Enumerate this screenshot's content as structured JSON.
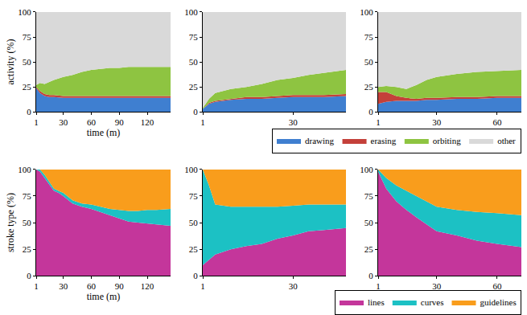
{
  "chart_data": [
    {
      "type": "area",
      "stacked": true,
      "ylabel": "activity (%)",
      "xlabel": "time (m)",
      "x": [
        1,
        5,
        10,
        15,
        20,
        30,
        40,
        50,
        60,
        70,
        80,
        90,
        100,
        110,
        120,
        130,
        145
      ],
      "xlim": [
        1,
        145
      ],
      "xticks": [
        1,
        30,
        60,
        90,
        120
      ],
      "ylim": [
        0,
        100
      ],
      "yticks": [
        0,
        25,
        50,
        75,
        100
      ],
      "series": [
        {
          "name": "drawing",
          "color": "#3f7fd0",
          "values": [
            24,
            19,
            16,
            15,
            15,
            14,
            14,
            14,
            14,
            14,
            14,
            14,
            14,
            14,
            14,
            14,
            14
          ]
        },
        {
          "name": "erasing",
          "color": "#c4403a",
          "values": [
            1,
            2,
            2,
            2,
            2,
            2,
            2,
            2,
            2,
            2,
            2,
            2,
            2,
            2,
            2,
            2,
            2
          ]
        },
        {
          "name": "orbiting",
          "color": "#8ec441",
          "values": [
            2,
            8,
            10,
            13,
            15,
            19,
            21,
            24,
            26,
            27,
            28,
            28,
            29,
            29,
            29,
            29,
            29
          ]
        },
        {
          "name": "other",
          "color": "#d9d9d9",
          "values": [
            73,
            71,
            72,
            70,
            68,
            65,
            63,
            60,
            58,
            57,
            56,
            56,
            55,
            55,
            55,
            55,
            55
          ]
        }
      ]
    },
    {
      "type": "area",
      "stacked": true,
      "x": [
        1,
        3,
        5,
        10,
        15,
        20,
        25,
        30,
        35,
        40,
        47
      ],
      "xlim": [
        1,
        47
      ],
      "xticks": [
        1,
        30
      ],
      "ylim": [
        0,
        100
      ],
      "yticks": [
        0,
        25,
        50,
        75,
        100
      ],
      "series": [
        {
          "name": "drawing",
          "color": "#3f7fd0",
          "values": [
            3,
            8,
            10,
            12,
            13,
            13,
            14,
            15,
            15,
            15,
            16
          ]
        },
        {
          "name": "erasing",
          "color": "#c4403a",
          "values": [
            0,
            1,
            1,
            1,
            2,
            2,
            2,
            2,
            2,
            2,
            2
          ]
        },
        {
          "name": "orbiting",
          "color": "#8ec441",
          "values": [
            1,
            4,
            8,
            10,
            10,
            13,
            16,
            17,
            20,
            22,
            24
          ]
        },
        {
          "name": "other",
          "color": "#d9d9d9",
          "values": [
            96,
            87,
            81,
            77,
            75,
            72,
            68,
            66,
            63,
            61,
            58
          ]
        }
      ]
    },
    {
      "type": "area",
      "stacked": true,
      "legend": "bottom right",
      "x": [
        1,
        5,
        10,
        15,
        20,
        25,
        30,
        40,
        50,
        60,
        72
      ],
      "xlim": [
        1,
        72
      ],
      "xticks": [
        1,
        30,
        60
      ],
      "ylim": [
        0,
        100
      ],
      "yticks": [
        0,
        25,
        50,
        75,
        100
      ],
      "series": [
        {
          "name": "drawing",
          "color": "#3f7fd0",
          "values": [
            8,
            10,
            11,
            11,
            11,
            12,
            12,
            13,
            13,
            14,
            14
          ]
        },
        {
          "name": "erasing",
          "color": "#c4403a",
          "values": [
            12,
            10,
            5,
            3,
            2,
            2,
            2,
            2,
            2,
            2,
            2
          ]
        },
        {
          "name": "orbiting",
          "color": "#8ec441",
          "values": [
            5,
            6,
            9,
            9,
            14,
            18,
            21,
            23,
            25,
            25,
            26
          ]
        },
        {
          "name": "other",
          "color": "#d9d9d9",
          "values": [
            75,
            74,
            75,
            77,
            73,
            68,
            65,
            62,
            60,
            59,
            58
          ]
        }
      ]
    },
    {
      "type": "area",
      "stacked": true,
      "ylabel": "stroke type (%)",
      "xlabel": "time (m)",
      "x": [
        1,
        5,
        10,
        15,
        20,
        25,
        30,
        40,
        50,
        60,
        70,
        80,
        90,
        100,
        110,
        120,
        130,
        145
      ],
      "xlim": [
        1,
        145
      ],
      "xticks": [
        1,
        30,
        60,
        90,
        120
      ],
      "ylim": [
        0,
        100
      ],
      "yticks": [
        0,
        25,
        50,
        75,
        100
      ],
      "series": [
        {
          "name": "lines",
          "color": "#c4369b",
          "values": [
            100,
            98,
            92,
            86,
            80,
            78,
            75,
            68,
            65,
            63,
            60,
            57,
            54,
            51,
            50,
            49,
            48,
            47
          ]
        },
        {
          "name": "curves",
          "color": "#1cc1c4",
          "values": [
            0,
            2,
            3,
            2,
            2,
            2,
            3,
            3,
            3,
            4,
            5,
            6,
            8,
            10,
            11,
            13,
            14,
            16
          ]
        },
        {
          "name": "guidelines",
          "color": "#f99d1c",
          "values": [
            0,
            0,
            5,
            12,
            18,
            20,
            22,
            29,
            32,
            33,
            35,
            37,
            38,
            39,
            39,
            38,
            38,
            37
          ]
        }
      ]
    },
    {
      "type": "area",
      "stacked": true,
      "x": [
        1,
        3,
        5,
        10,
        15,
        20,
        25,
        30,
        35,
        40,
        47
      ],
      "xlim": [
        1,
        47
      ],
      "xticks": [
        1,
        30
      ],
      "ylim": [
        0,
        100
      ],
      "yticks": [
        0,
        25,
        50,
        75,
        100
      ],
      "series": [
        {
          "name": "lines",
          "color": "#c4369b",
          "values": [
            10,
            15,
            20,
            25,
            28,
            30,
            35,
            38,
            42,
            43,
            45
          ]
        },
        {
          "name": "curves",
          "color": "#1cc1c4",
          "values": [
            90,
            70,
            47,
            40,
            37,
            35,
            30,
            28,
            25,
            24,
            22
          ]
        },
        {
          "name": "guidelines",
          "color": "#f99d1c",
          "values": [
            0,
            15,
            33,
            35,
            35,
            35,
            35,
            34,
            33,
            33,
            33
          ]
        }
      ]
    },
    {
      "type": "area",
      "stacked": true,
      "legend": "bottom right",
      "x": [
        1,
        5,
        10,
        15,
        20,
        30,
        40,
        50,
        60,
        72
      ],
      "xlim": [
        1,
        72
      ],
      "xticks": [
        1,
        30,
        60
      ],
      "ylim": [
        0,
        100
      ],
      "yticks": [
        0,
        25,
        50,
        75,
        100
      ],
      "series": [
        {
          "name": "lines",
          "color": "#c4369b",
          "values": [
            98,
            82,
            70,
            62,
            55,
            42,
            38,
            33,
            30,
            27
          ]
        },
        {
          "name": "curves",
          "color": "#1cc1c4",
          "values": [
            2,
            10,
            15,
            18,
            20,
            23,
            24,
            27,
            29,
            30
          ]
        },
        {
          "name": "guidelines",
          "color": "#f99d1c",
          "values": [
            0,
            8,
            15,
            20,
            25,
            35,
            38,
            40,
            41,
            43
          ]
        }
      ]
    }
  ]
}
